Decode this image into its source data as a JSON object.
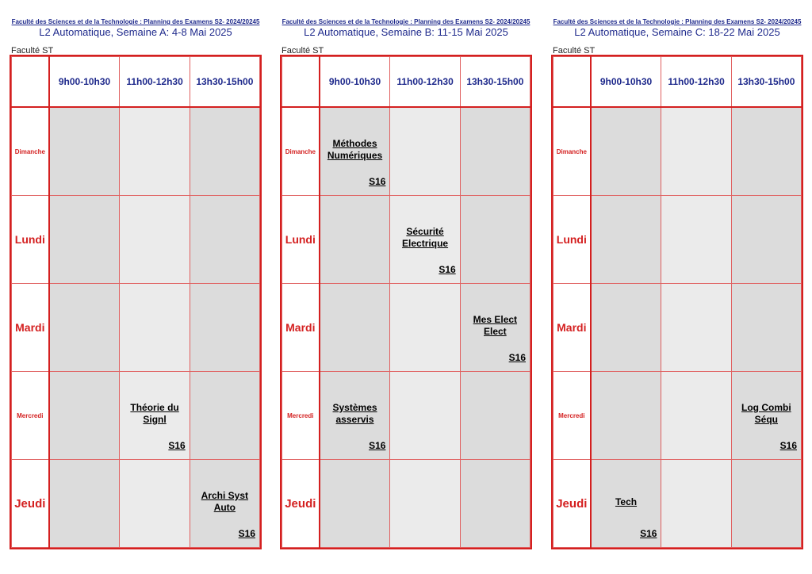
{
  "weeks": [
    {
      "faculty_header": "Faculté des Sciences et de la Technologie : Planning des Examens S2- 2024/20245",
      "title": "L2 Automatique, Semaine A: 4-8 Mai 2025",
      "faculty_label": "Faculté ST",
      "slots": [
        "9h00-10h30",
        "11h00-12h30",
        "13h30-15h00"
      ],
      "days": [
        "Dimanche",
        "Lundi",
        "Mardi",
        "Mercredi",
        "Jeudi"
      ],
      "exams": [
        [
          "",
          "",
          ""
        ],
        [
          "",
          "",
          ""
        ],
        [
          "",
          "",
          ""
        ],
        [
          "",
          "Théorie du Signl",
          ""
        ],
        [
          "",
          "",
          "Archi Syst Auto"
        ]
      ],
      "rooms": [
        [
          "",
          "",
          ""
        ],
        [
          "",
          "",
          ""
        ],
        [
          "",
          "",
          ""
        ],
        [
          "",
          "S16",
          ""
        ],
        [
          "",
          "",
          "S16"
        ]
      ]
    },
    {
      "faculty_header": "Faculté des Sciences et de la Technologie : Planning des Examens S2- 2024/20245",
      "title": "L2 Automatique, Semaine B: 11-15 Mai 2025",
      "faculty_label": "Faculté ST",
      "slots": [
        "9h00-10h30",
        "11h00-12h30",
        "13h30-15h00"
      ],
      "days": [
        "Dimanche",
        "Lundi",
        "Mardi",
        "Mercredi",
        "Jeudi"
      ],
      "exams": [
        [
          "Méthodes Numériques",
          "",
          ""
        ],
        [
          "",
          "Sécurité Electrique",
          ""
        ],
        [
          "",
          "",
          "Mes Elect Elect"
        ],
        [
          "Systèmes asservis",
          "",
          ""
        ],
        [
          "",
          "",
          ""
        ]
      ],
      "rooms": [
        [
          "S16",
          "",
          ""
        ],
        [
          "",
          "S16",
          ""
        ],
        [
          "",
          "",
          "S16"
        ],
        [
          "S16",
          "",
          ""
        ],
        [
          "",
          "",
          ""
        ]
      ]
    },
    {
      "faculty_header": "Faculté des Sciences et de la Technologie : Planning des Examens S2- 2024/20245",
      "title": "L2 Automatique, Semaine C: 18-22 Mai 2025",
      "faculty_label": "Faculté ST",
      "slots": [
        "9h00-10h30",
        "11h00-12h30",
        "13h30-15h00"
      ],
      "days": [
        "Dimanche",
        "Lundi",
        "Mardi",
        "Mercredi",
        "Jeudi"
      ],
      "exams": [
        [
          "",
          "",
          ""
        ],
        [
          "",
          "",
          ""
        ],
        [
          "",
          "",
          ""
        ],
        [
          "",
          "",
          "Log Combi Séqu"
        ],
        [
          "Tech",
          "",
          ""
        ]
      ],
      "rooms": [
        [
          "",
          "",
          ""
        ],
        [
          "",
          "",
          ""
        ],
        [
          "",
          "",
          ""
        ],
        [
          "",
          "",
          "S16"
        ],
        [
          "S16",
          "",
          ""
        ]
      ]
    }
  ],
  "colors": {
    "header_blue": "#1f2a8c",
    "day_red": "#d42020",
    "cell_dark": "#dcdcdc",
    "cell_light": "#ebebeb"
  }
}
